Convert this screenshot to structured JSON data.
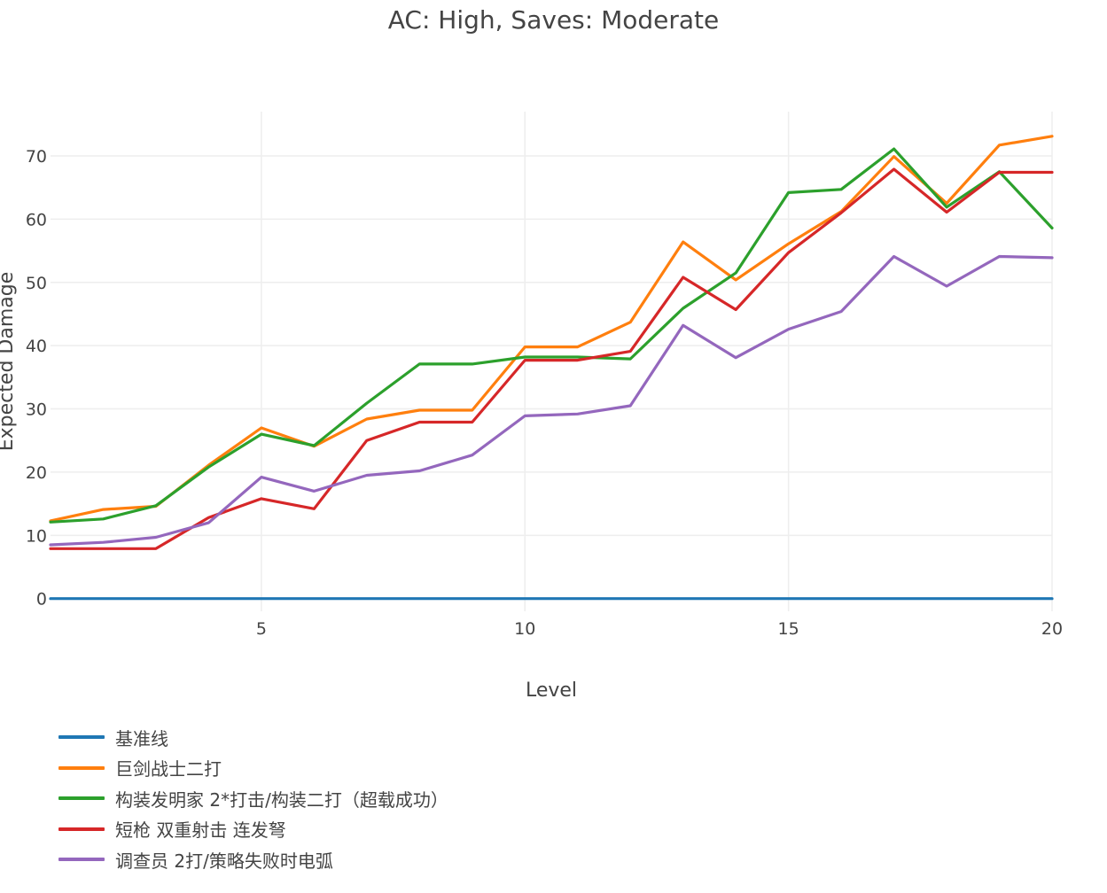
{
  "chart_data": {
    "type": "line",
    "title": "AC: High, Saves: Moderate",
    "xlabel": "Level",
    "ylabel": "Expected Damage",
    "xlim": [
      1,
      20
    ],
    "ylim": [
      -2,
      77
    ],
    "x_ticks": [
      5,
      10,
      15,
      20
    ],
    "y_ticks": [
      0,
      10,
      20,
      30,
      40,
      50,
      60,
      70
    ],
    "grid": true,
    "legend_position": "bottom-left",
    "x": [
      1,
      2,
      3,
      4,
      5,
      6,
      7,
      8,
      9,
      10,
      11,
      12,
      13,
      14,
      15,
      16,
      17,
      18,
      19,
      20
    ],
    "series": [
      {
        "name": "基准线",
        "color": "#1f77b4",
        "values": [
          0,
          0,
          0,
          0,
          0,
          0,
          0,
          0,
          0,
          0,
          0,
          0,
          0,
          0,
          0,
          0,
          0,
          0,
          0,
          0
        ]
      },
      {
        "name": "巨剑战士二打",
        "color": "#ff7f0e",
        "values": [
          12.3,
          14.1,
          14.6,
          21.1,
          27.0,
          24.1,
          28.4,
          29.8,
          29.8,
          39.8,
          39.8,
          43.7,
          56.4,
          50.4,
          56.1,
          61.2,
          69.9,
          62.5,
          71.7,
          73.1
        ]
      },
      {
        "name": "构装发明家 2*打击/构装二打（超载成功）",
        "color": "#2ca02c",
        "values": [
          12.1,
          12.6,
          14.7,
          20.8,
          26.0,
          24.2,
          30.9,
          37.1,
          37.1,
          38.2,
          38.2,
          37.9,
          45.9,
          51.5,
          64.2,
          64.7,
          71.1,
          61.9,
          67.5,
          58.6
        ]
      },
      {
        "name": "短枪 双重射击 连发弩",
        "color": "#d62728",
        "values": [
          7.9,
          7.9,
          7.9,
          12.8,
          15.8,
          14.2,
          25.0,
          27.9,
          27.9,
          37.7,
          37.7,
          39.1,
          50.8,
          45.7,
          54.7,
          61.0,
          67.9,
          61.1,
          67.4,
          67.4
        ]
      },
      {
        "name": "调查员 2打/策略失败时电弧",
        "color": "#9467bd",
        "values": [
          8.5,
          8.9,
          9.7,
          12.0,
          19.2,
          17.0,
          19.5,
          20.2,
          22.7,
          28.9,
          29.2,
          30.5,
          43.2,
          38.1,
          42.6,
          45.4,
          54.1,
          49.4,
          54.1,
          53.9
        ]
      }
    ]
  }
}
